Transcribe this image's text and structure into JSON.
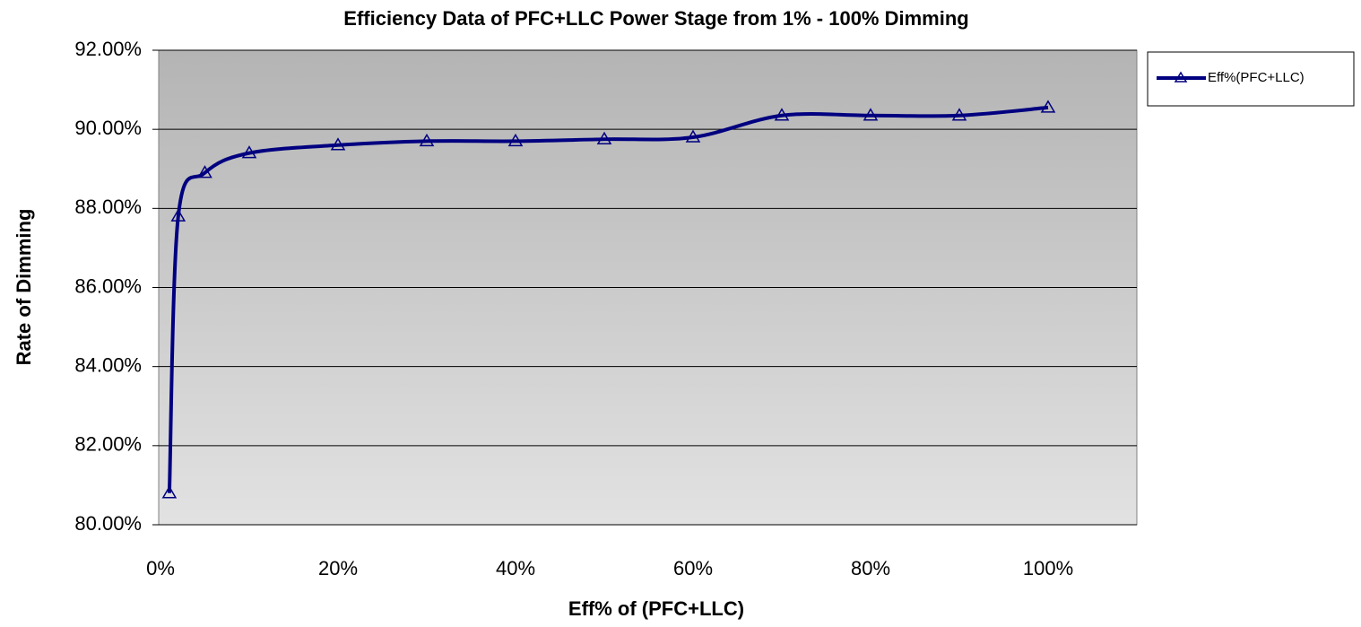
{
  "chart_data": {
    "type": "line",
    "title": "Efficiency Data of PFC+LLC Power Stage from 1% - 100% Dimming",
    "x_label": "Eff% of (PFC+LLC)",
    "y_label": "Rate of Dimming",
    "x": [
      1,
      2,
      5,
      10,
      20,
      30,
      40,
      50,
      60,
      70,
      80,
      90,
      100
    ],
    "series": [
      {
        "name": "Eff%(PFC+LLC)",
        "color": "#000080",
        "values": [
          80.8,
          87.8,
          88.9,
          89.4,
          89.6,
          89.7,
          89.7,
          89.75,
          89.8,
          90.35,
          90.35,
          90.35,
          90.55
        ]
      }
    ],
    "xlim": [
      0,
      110
    ],
    "xticks": [
      {
        "value": 0,
        "label": "0%"
      },
      {
        "value": 20,
        "label": "20%"
      },
      {
        "value": 40,
        "label": "40%"
      },
      {
        "value": 60,
        "label": "60%"
      },
      {
        "value": 80,
        "label": "80%"
      },
      {
        "value": 100,
        "label": "100%"
      }
    ],
    "ylim": [
      80,
      92
    ],
    "yticks": [
      {
        "value": 80,
        "label": "80.00%"
      },
      {
        "value": 82,
        "label": "82.00%"
      },
      {
        "value": 84,
        "label": "84.00%"
      },
      {
        "value": 86,
        "label": "86.00%"
      },
      {
        "value": 88,
        "label": "88.00%"
      },
      {
        "value": 90,
        "label": "90.00%"
      },
      {
        "value": 92,
        "label": "92.00%"
      }
    ],
    "grid": true,
    "legend": "right"
  }
}
